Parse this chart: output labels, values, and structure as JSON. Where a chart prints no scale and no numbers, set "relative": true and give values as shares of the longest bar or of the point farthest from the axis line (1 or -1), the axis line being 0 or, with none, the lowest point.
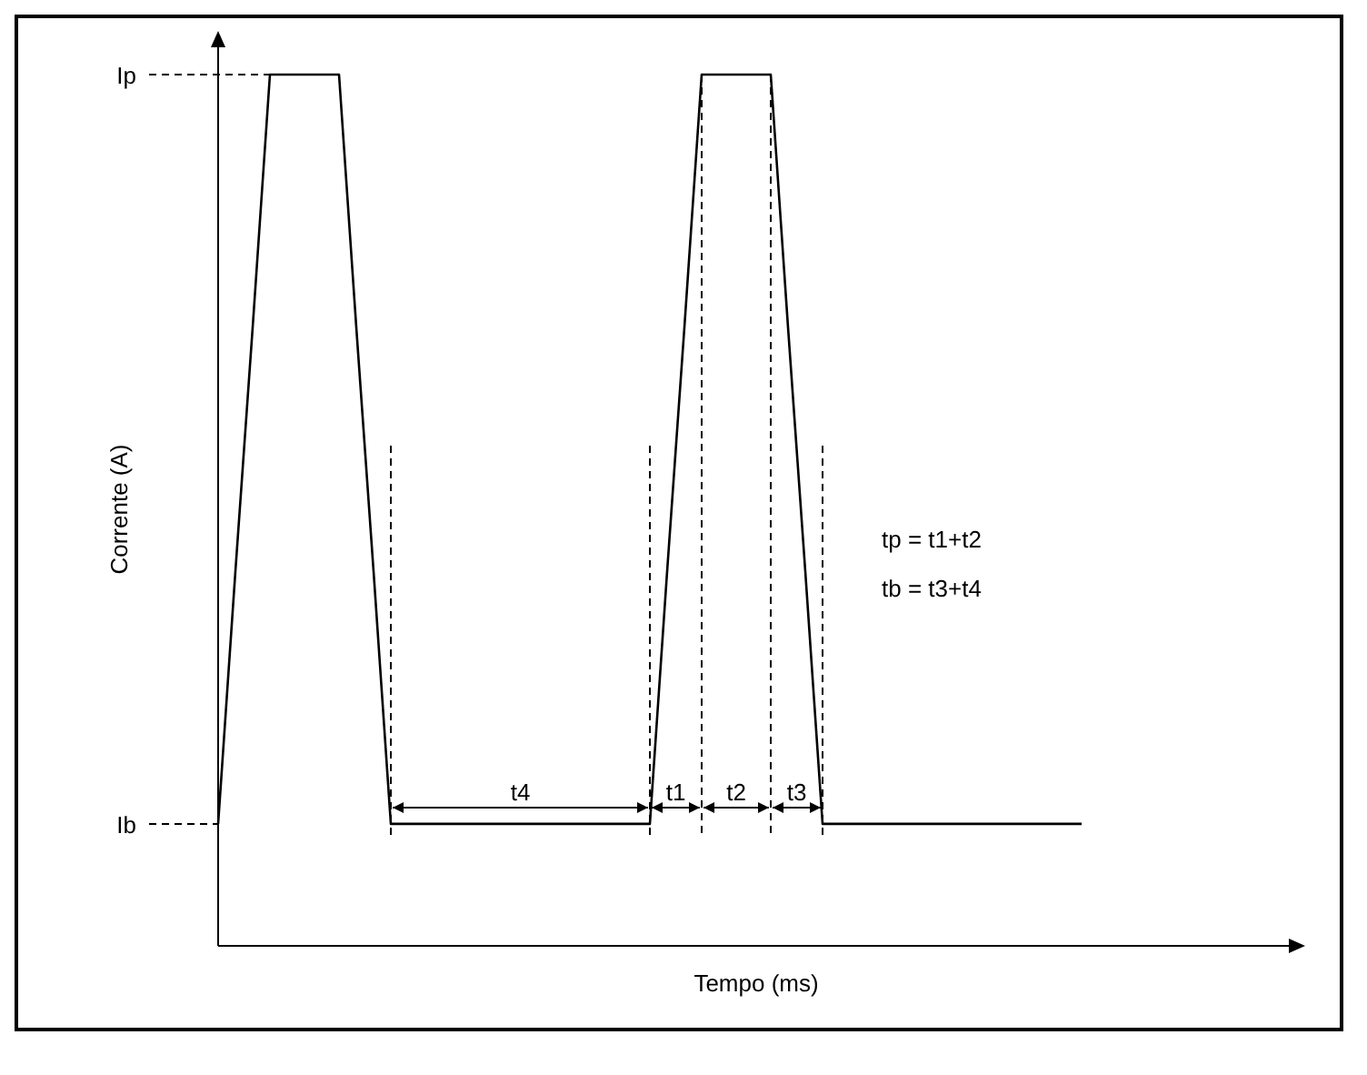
{
  "chart_data": {
    "type": "line",
    "relative": true,
    "xlabel": "Tempo (ms)",
    "ylabel": "Corrente (A)",
    "marker": "none",
    "line_style": "solid",
    "categories": [
      null,
      null,
      null,
      null,
      null,
      null,
      null,
      null,
      null,
      null,
      null,
      null,
      null,
      null,
      null,
      null,
      null,
      null,
      null,
      null,
      null,
      null,
      null,
      null,
      null,
      null,
      null,
      null,
      null,
      null,
      null,
      null,
      null,
      null,
      null,
      null,
      null,
      null,
      null,
      null,
      null,
      null,
      null,
      null,
      null,
      null,
      null,
      null,
      null,
      null,
      null
    ],
    "series": [
      {
        "color": "#000000",
        "values": [
          0.14,
          0.43,
          0.71,
          1,
          1,
          1,
          1,
          1,
          0.71,
          0.43,
          0.14,
          0.14,
          0.14,
          0.14,
          0.14,
          0.14,
          0.14,
          0.14,
          0.14,
          0.14,
          0.14,
          0.14,
          0.14,
          0.14,
          0.14,
          0.14,
          0.43,
          0.71,
          1,
          1,
          1,
          1,
          1,
          0.71,
          0.43,
          0.14,
          0.14,
          0.14,
          0.14,
          0.14,
          0.14,
          0.14,
          0.14,
          0.14,
          0.14,
          0.14,
          0.14,
          0.14,
          0.14,
          0.14,
          0.14
        ]
      }
    ],
    "ref_lines": [
      {
        "axis": "y",
        "value": 1,
        "label": "Ip",
        "line_style": "dashed",
        "color": "#000000"
      },
      {
        "axis": "y",
        "value": 0.14,
        "label": "Ib",
        "line_style": "dashed",
        "color": "#000000"
      }
    ],
    "annotations": [
      "t4",
      "t1",
      "t2",
      "t3",
      "tp = t1+t2",
      "tb = t3+t4"
    ]
  }
}
